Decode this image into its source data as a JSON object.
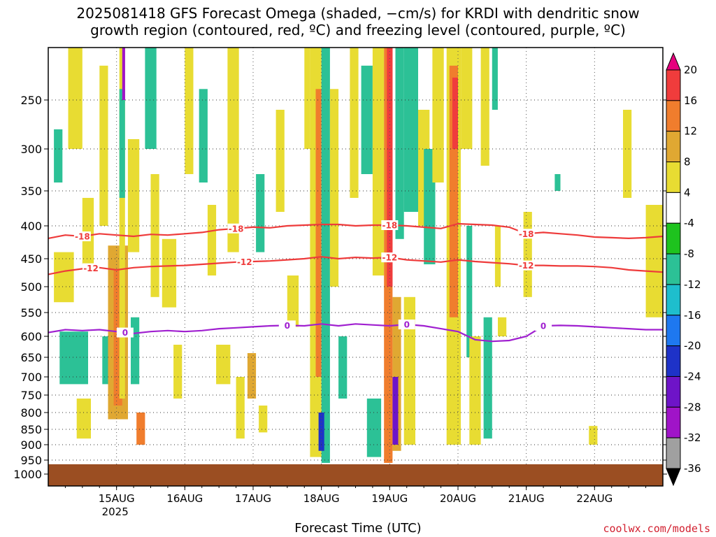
{
  "header": {
    "title_line1": "2025081418 GFS Forecast Omega (shaded, −cm/s) for KRDI with dendritic snow",
    "title_line2": "growth region (contoured, red, ºC) and freezing level (contoured, purple, ºC)"
  },
  "footer": {
    "xaxis_title": "Forecast Time (UTC)",
    "credit": "coolwx.com/models"
  },
  "chart_data": {
    "type": "heatmap",
    "title": "2025081418 GFS Forecast Omega (shaded, −cm/s) for KRDI with dendritic snow growth region (contoured, red, ºC) and freezing level (contoured, purple, ºC)",
    "xlabel": "Forecast Time (UTC)",
    "ylabel": "",
    "y_scale": "log-pressure",
    "ylim": [
      1000,
      200
    ],
    "xlim_hours": [
      -18,
      198
    ],
    "grid": true,
    "yticks": [
      250,
      300,
      350,
      400,
      450,
      500,
      550,
      600,
      650,
      700,
      750,
      800,
      850,
      900,
      950,
      1000
    ],
    "xticks": [
      {
        "label": "15AUG",
        "sublabel": "2025",
        "hour": 6
      },
      {
        "label": "16AUG",
        "sublabel": "",
        "hour": 30
      },
      {
        "label": "17AUG",
        "sublabel": "",
        "hour": 54
      },
      {
        "label": "18AUG",
        "sublabel": "",
        "hour": 78
      },
      {
        "label": "19AUG",
        "sublabel": "",
        "hour": 102
      },
      {
        "label": "20AUG",
        "sublabel": "",
        "hour": 126
      },
      {
        "label": "21AUG",
        "sublabel": "",
        "hour": 150
      },
      {
        "label": "22AUG",
        "sublabel": "",
        "hour": 174
      }
    ],
    "surface_pressure": 965,
    "surface_color": "#9b4e22",
    "colorbar": {
      "labels": [
        "20",
        "16",
        "12",
        "8",
        "4",
        "-4",
        "-8",
        "-12",
        "-16",
        "-20",
        "-24",
        "-28",
        "-32",
        "-36"
      ],
      "colors": [
        "#e6007e",
        "#f03c3c",
        "#f07d2d",
        "#e0a832",
        "#e8dc32",
        "#ffffff",
        "#1ec31e",
        "#2cc196",
        "#1ebecd",
        "#1e78f0",
        "#1e32c8",
        "#6e14c8",
        "#a014c8",
        "#a0a0a0",
        "#000000"
      ]
    },
    "contours": [
      {
        "name": "-18",
        "color": "#ee3b3b",
        "label": "-18",
        "points": [
          [
            -18,
            419
          ],
          [
            -12,
            414
          ],
          [
            -6,
            416
          ],
          [
            0,
            412
          ],
          [
            6,
            414
          ],
          [
            12,
            416
          ],
          [
            18,
            413
          ],
          [
            24,
            414
          ],
          [
            30,
            412
          ],
          [
            36,
            410
          ],
          [
            42,
            406
          ],
          [
            48,
            404
          ],
          [
            54,
            402
          ],
          [
            60,
            403
          ],
          [
            66,
            400
          ],
          [
            72,
            399
          ],
          [
            78,
            398
          ],
          [
            84,
            398
          ],
          [
            90,
            400
          ],
          [
            96,
            399
          ],
          [
            102,
            399
          ],
          [
            108,
            400
          ],
          [
            114,
            402
          ],
          [
            120,
            404
          ],
          [
            126,
            397
          ],
          [
            132,
            398
          ],
          [
            138,
            399
          ],
          [
            144,
            402
          ],
          [
            150,
            412
          ],
          [
            156,
            410
          ],
          [
            162,
            412
          ],
          [
            168,
            414
          ],
          [
            174,
            417
          ],
          [
            180,
            418
          ],
          [
            186,
            419
          ],
          [
            192,
            418
          ],
          [
            198,
            416
          ]
        ],
        "labels_at": [
          -6,
          48,
          102,
          150
        ]
      },
      {
        "name": "-12",
        "color": "#ee3b3b",
        "label": "-12",
        "points": [
          [
            -18,
            478
          ],
          [
            -12,
            472
          ],
          [
            -6,
            468
          ],
          [
            0,
            466
          ],
          [
            6,
            470
          ],
          [
            12,
            466
          ],
          [
            18,
            464
          ],
          [
            24,
            463
          ],
          [
            30,
            462
          ],
          [
            36,
            460
          ],
          [
            42,
            458
          ],
          [
            48,
            456
          ],
          [
            54,
            455
          ],
          [
            60,
            454
          ],
          [
            66,
            452
          ],
          [
            72,
            450
          ],
          [
            78,
            447
          ],
          [
            84,
            450
          ],
          [
            90,
            448
          ],
          [
            96,
            449
          ],
          [
            102,
            448
          ],
          [
            108,
            452
          ],
          [
            114,
            454
          ],
          [
            120,
            456
          ],
          [
            126,
            452
          ],
          [
            132,
            455
          ],
          [
            138,
            457
          ],
          [
            144,
            459
          ],
          [
            150,
            462
          ],
          [
            156,
            462
          ],
          [
            162,
            463
          ],
          [
            168,
            463
          ],
          [
            174,
            464
          ],
          [
            180,
            466
          ],
          [
            186,
            470
          ],
          [
            192,
            472
          ],
          [
            198,
            474
          ]
        ],
        "labels_at": [
          -3,
          51,
          102,
          150
        ]
      },
      {
        "name": "0",
        "color": "#a020d0",
        "label": "0",
        "points": [
          [
            -18,
            592
          ],
          [
            -12,
            586
          ],
          [
            -6,
            588
          ],
          [
            0,
            586
          ],
          [
            6,
            590
          ],
          [
            12,
            594
          ],
          [
            18,
            590
          ],
          [
            24,
            588
          ],
          [
            30,
            590
          ],
          [
            36,
            588
          ],
          [
            42,
            584
          ],
          [
            48,
            582
          ],
          [
            54,
            580
          ],
          [
            60,
            578
          ],
          [
            66,
            577
          ],
          [
            72,
            578
          ],
          [
            78,
            574
          ],
          [
            84,
            578
          ],
          [
            90,
            574
          ],
          [
            96,
            576
          ],
          [
            102,
            578
          ],
          [
            108,
            575
          ],
          [
            114,
            578
          ],
          [
            120,
            584
          ],
          [
            126,
            590
          ],
          [
            132,
            608
          ],
          [
            138,
            612
          ],
          [
            144,
            610
          ],
          [
            150,
            600
          ],
          [
            156,
            578
          ],
          [
            162,
            577
          ],
          [
            168,
            578
          ],
          [
            174,
            580
          ],
          [
            180,
            582
          ],
          [
            186,
            584
          ],
          [
            192,
            586
          ],
          [
            198,
            586
          ]
        ],
        "labels_at": [
          9,
          66,
          108,
          156
        ]
      }
    ],
    "omega_cells": [
      {
        "h0": -16,
        "h1": -13,
        "p0": 280,
        "p1": 340,
        "v": -8
      },
      {
        "h0": -16,
        "h1": -9,
        "p0": 440,
        "p1": 530,
        "v": 6
      },
      {
        "h0": -14,
        "h1": -4,
        "p0": 590,
        "p1": 720,
        "v": -10
      },
      {
        "h0": -11,
        "h1": -6,
        "p0": 200,
        "p1": 300,
        "v": 6
      },
      {
        "h0": -8,
        "h1": -3,
        "p0": 760,
        "p1": 880,
        "v": 6
      },
      {
        "h0": -6,
        "h1": -2,
        "p0": 360,
        "p1": 460,
        "v": 6
      },
      {
        "h0": 0,
        "h1": 3,
        "p0": 220,
        "p1": 400,
        "v": 6
      },
      {
        "h0": 1,
        "h1": 5,
        "p0": 600,
        "p1": 720,
        "v": -8
      },
      {
        "h0": 3,
        "h1": 10,
        "p0": 430,
        "p1": 820,
        "v": 8
      },
      {
        "h0": 5,
        "h1": 8,
        "p0": 470,
        "p1": 780,
        "v": 14
      },
      {
        "h0": 7,
        "h1": 9,
        "p0": 200,
        "p1": 760,
        "v": 6
      },
      {
        "h0": 7,
        "h1": 9,
        "p0": 240,
        "p1": 360,
        "v": -10
      },
      {
        "h0": 8,
        "h1": 9,
        "p0": 200,
        "p1": 250,
        "v": -28
      },
      {
        "h0": 10,
        "h1": 14,
        "p0": 290,
        "p1": 440,
        "v": 6
      },
      {
        "h0": 11,
        "h1": 14,
        "p0": 560,
        "p1": 720,
        "v": -8
      },
      {
        "h0": 13,
        "h1": 16,
        "p0": 800,
        "p1": 900,
        "v": 12
      },
      {
        "h0": 16,
        "h1": 20,
        "p0": 200,
        "p1": 300,
        "v": -8
      },
      {
        "h0": 18,
        "h1": 21,
        "p0": 330,
        "p1": 520,
        "v": 6
      },
      {
        "h0": 22,
        "h1": 27,
        "p0": 420,
        "p1": 540,
        "v": 6
      },
      {
        "h0": 26,
        "h1": 29,
        "p0": 620,
        "p1": 760,
        "v": 6
      },
      {
        "h0": 30,
        "h1": 33,
        "p0": 200,
        "p1": 330,
        "v": 6
      },
      {
        "h0": 35,
        "h1": 38,
        "p0": 240,
        "p1": 340,
        "v": -8
      },
      {
        "h0": 38,
        "h1": 41,
        "p0": 370,
        "p1": 480,
        "v": 6
      },
      {
        "h0": 41,
        "h1": 46,
        "p0": 620,
        "p1": 720,
        "v": 6
      },
      {
        "h0": 45,
        "h1": 49,
        "p0": 200,
        "p1": 440,
        "v": 6
      },
      {
        "h0": 48,
        "h1": 51,
        "p0": 700,
        "p1": 880,
        "v": 6
      },
      {
        "h0": 52,
        "h1": 55,
        "p0": 640,
        "p1": 760,
        "v": 10
      },
      {
        "h0": 55,
        "h1": 58,
        "p0": 330,
        "p1": 440,
        "v": -8
      },
      {
        "h0": 56,
        "h1": 59,
        "p0": 780,
        "p1": 860,
        "v": 6
      },
      {
        "h0": 62,
        "h1": 65,
        "p0": 260,
        "p1": 380,
        "v": 6
      },
      {
        "h0": 66,
        "h1": 70,
        "p0": 480,
        "p1": 580,
        "v": 6
      },
      {
        "h0": 72,
        "h1": 74,
        "p0": 200,
        "p1": 300,
        "v": 6
      },
      {
        "h0": 74,
        "h1": 78,
        "p0": 200,
        "p1": 940,
        "v": 6
      },
      {
        "h0": 76,
        "h1": 78,
        "p0": 240,
        "p1": 700,
        "v": 12
      },
      {
        "h0": 78,
        "h1": 81,
        "p0": 200,
        "p1": 960,
        "v": -8
      },
      {
        "h0": 77,
        "h1": 79,
        "p0": 800,
        "p1": 920,
        "v": -22
      },
      {
        "h0": 81,
        "h1": 84,
        "p0": 240,
        "p1": 500,
        "v": 6
      },
      {
        "h0": 84,
        "h1": 87,
        "p0": 600,
        "p1": 760,
        "v": -8
      },
      {
        "h0": 88,
        "h1": 91,
        "p0": 200,
        "p1": 360,
        "v": 6
      },
      {
        "h0": 92,
        "h1": 96,
        "p0": 220,
        "p1": 330,
        "v": -8
      },
      {
        "h0": 94,
        "h1": 99,
        "p0": 760,
        "p1": 940,
        "v": -10
      },
      {
        "h0": 96,
        "h1": 100,
        "p0": 200,
        "p1": 480,
        "v": 6
      },
      {
        "h0": 100,
        "h1": 103,
        "p0": 200,
        "p1": 960,
        "v": 12
      },
      {
        "h0": 101,
        "h1": 103,
        "p0": 200,
        "p1": 500,
        "v": 18
      },
      {
        "h0": 103,
        "h1": 106,
        "p0": 520,
        "p1": 920,
        "v": 10
      },
      {
        "h0": 103,
        "h1": 105,
        "p0": 700,
        "p1": 900,
        "v": -26
      },
      {
        "h0": 104,
        "h1": 107,
        "p0": 200,
        "p1": 420,
        "v": -10
      },
      {
        "h0": 107,
        "h1": 112,
        "p0": 200,
        "p1": 380,
        "v": -8
      },
      {
        "h0": 107,
        "h1": 111,
        "p0": 520,
        "p1": 900,
        "v": 6
      },
      {
        "h0": 112,
        "h1": 116,
        "p0": 260,
        "p1": 400,
        "v": 6
      },
      {
        "h0": 114,
        "h1": 118,
        "p0": 300,
        "p1": 460,
        "v": -8
      },
      {
        "h0": 117,
        "h1": 121,
        "p0": 200,
        "p1": 340,
        "v": 6
      },
      {
        "h0": 122,
        "h1": 127,
        "p0": 200,
        "p1": 900,
        "v": 6
      },
      {
        "h0": 123,
        "h1": 126,
        "p0": 220,
        "p1": 560,
        "v": 14
      },
      {
        "h0": 124,
        "h1": 126,
        "p0": 230,
        "p1": 300,
        "v": 18
      },
      {
        "h0": 127,
        "h1": 131,
        "p0": 200,
        "p1": 300,
        "v": 6
      },
      {
        "h0": 129,
        "h1": 131,
        "p0": 400,
        "p1": 650,
        "v": -8
      },
      {
        "h0": 130,
        "h1": 134,
        "p0": 600,
        "p1": 900,
        "v": 6
      },
      {
        "h0": 134,
        "h1": 137,
        "p0": 200,
        "p1": 320,
        "v": 6
      },
      {
        "h0": 135,
        "h1": 138,
        "p0": 560,
        "p1": 880,
        "v": -10
      },
      {
        "h0": 138,
        "h1": 140,
        "p0": 200,
        "p1": 260,
        "v": -8
      },
      {
        "h0": 140,
        "h1": 143,
        "p0": 560,
        "p1": 600,
        "v": 6
      },
      {
        "h0": 139,
        "h1": 141,
        "p0": 400,
        "p1": 500,
        "v": 6
      },
      {
        "h0": 149,
        "h1": 152,
        "p0": 380,
        "p1": 520,
        "v": 6
      },
      {
        "h0": 160,
        "h1": 162,
        "p0": 330,
        "p1": 350,
        "v": -8
      },
      {
        "h0": 172,
        "h1": 175,
        "p0": 840,
        "p1": 900,
        "v": 6
      },
      {
        "h0": 184,
        "h1": 187,
        "p0": 260,
        "p1": 360,
        "v": 6
      },
      {
        "h0": 192,
        "h1": 198,
        "p0": 370,
        "p1": 560,
        "v": 6
      }
    ]
  }
}
